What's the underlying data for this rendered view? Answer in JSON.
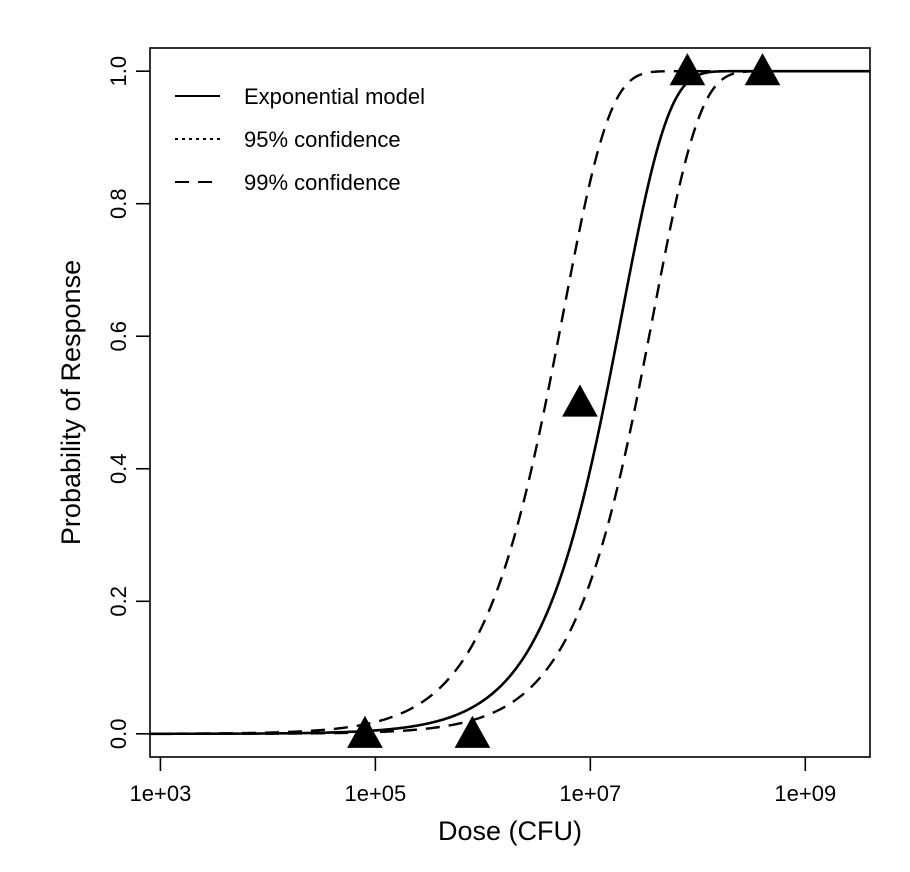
{
  "chart_data": {
    "type": "line",
    "title": "",
    "xlabel": "Dose (CFU)",
    "ylabel": "Probability of Response",
    "x_scale": "log10",
    "xlim": [
      800,
      4000000000
    ],
    "ylim": [
      -0.035,
      1.035
    ],
    "x_ticks": [
      1000,
      100000,
      10000000,
      1000000000
    ],
    "x_tick_labels": [
      "1e+03",
      "1e+05",
      "1e+07",
      "1e+09"
    ],
    "y_ticks": [
      0,
      0.2,
      0.4,
      0.6,
      0.8,
      1
    ],
    "y_tick_labels": [
      "0.0",
      "0.2",
      "0.4",
      "0.6",
      "0.8",
      "1.0"
    ],
    "grid": false,
    "legend_position": "top-left",
    "legend": [
      {
        "label": "Exponential model",
        "style": "solid"
      },
      {
        "label": "95% confidence",
        "style": "dotted"
      },
      {
        "label": "99% confidence",
        "style": "dashed"
      }
    ],
    "curves": {
      "x_range": [
        800,
        4000000000
      ],
      "model_k": 5.1e-08,
      "ci99_lower_k": 2.6e-08,
      "ci99_upper_k": 1.8e-07
    },
    "observed": {
      "marker": "filled-triangle",
      "points": [
        {
          "x": 80000,
          "y": 0.0
        },
        {
          "x": 800000,
          "y": 0.0
        },
        {
          "x": 8000000,
          "y": 0.5
        },
        {
          "x": 80000000,
          "y": 1.0
        },
        {
          "x": 400000000,
          "y": 1.0
        }
      ]
    }
  }
}
